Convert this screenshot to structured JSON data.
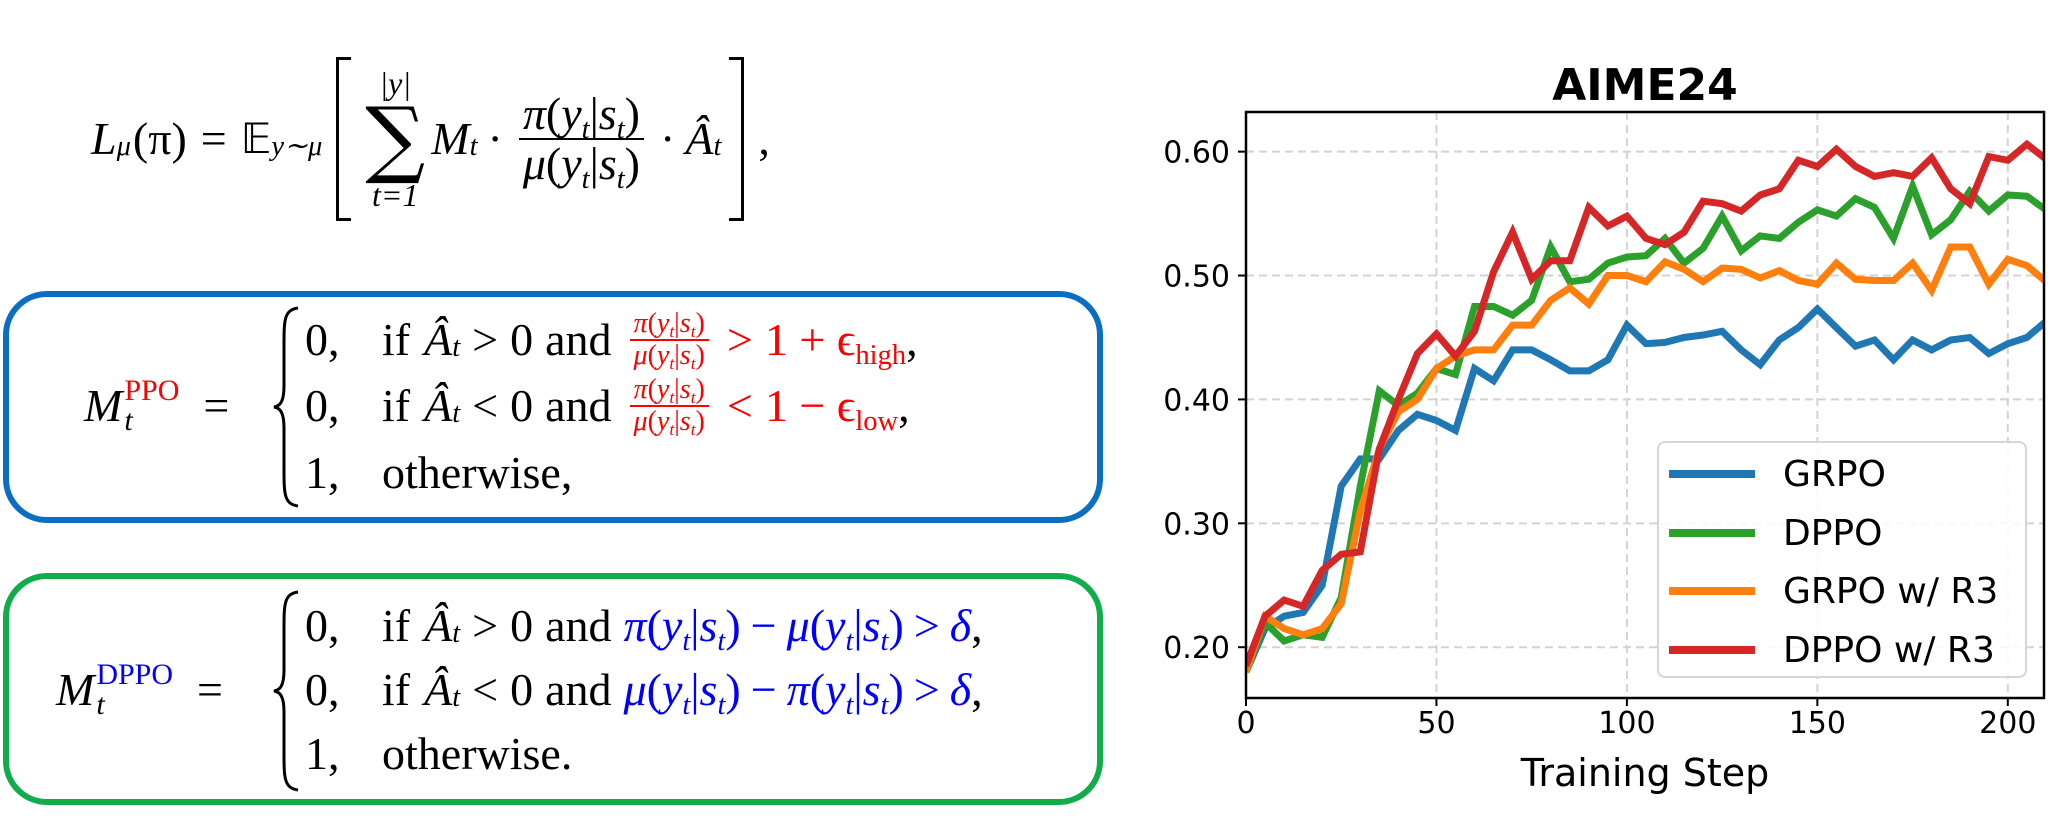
{
  "loss": {
    "L": "L",
    "mu": "μ",
    "arg": "(π)",
    "eq": "=",
    "E": "𝔼",
    "E_sub": "y∼μ",
    "sum": "∑",
    "upper": "|y|",
    "lower": "t=1",
    "M": "M",
    "t": "t",
    "dot": "·",
    "A": "Â",
    "comma": ","
  },
  "cond": {
    "pi": "π",
    "mu": "μ",
    "y": "y",
    "s": "s",
    "t": "t",
    "open": "(",
    "bar": "|",
    "close": ")",
    "minus": "−"
  },
  "ppo": {
    "lhs": "M",
    "lhs_sub": "t",
    "lhs_sup": "PPO",
    "eq": "=",
    "rows": [
      {
        "val": "0,",
        "if": "if",
        "A": "Â",
        "t": "t",
        "op": ">",
        "zero": "0",
        "and": "and",
        "rel": ">",
        "rhs": "1 + ϵ",
        "rhs_sub": "high",
        "end": ","
      },
      {
        "val": "0,",
        "if": "if",
        "A": "Â",
        "t": "t",
        "op": "<",
        "zero": "0",
        "and": "and",
        "rel": "<",
        "rhs": "1 − ϵ",
        "rhs_sub": "low",
        "end": ","
      },
      {
        "val": "1,",
        "text": "otherwise,"
      }
    ]
  },
  "dppo": {
    "lhs": "M",
    "lhs_sub": "t",
    "lhs_sup": "DPPO",
    "eq": "=",
    "rows": [
      {
        "val": "0,",
        "if": "if",
        "A": "Â",
        "t": "t",
        "op": ">",
        "zero": "0",
        "and": "and",
        "rel": ">",
        "delta": "δ",
        "end": ","
      },
      {
        "val": "0,",
        "if": "if",
        "A": "Â",
        "t": "t",
        "op": "<",
        "zero": "0",
        "and": "and",
        "rel": ">",
        "delta": "δ",
        "end": ","
      },
      {
        "val": "1,",
        "text": "otherwise."
      }
    ]
  },
  "colors": {
    "ppo_box": "#0a6fc2",
    "dppo_box": "#12ad4b",
    "ppo_highlight": "#ff0000",
    "dppo_highlight": "#0000ff"
  },
  "chart_data": {
    "type": "line",
    "title": "AIME24",
    "xlabel": "Training Step",
    "ylabel": "",
    "xlim": [
      0,
      209.5
    ],
    "ylim": [
      0.159,
      0.632
    ],
    "xticks": [
      0,
      50,
      100,
      150,
      200
    ],
    "xtick_labels": [
      "0",
      "50",
      "100",
      "150",
      "200"
    ],
    "yticks": [
      0.2,
      0.3,
      0.4,
      0.5,
      0.6
    ],
    "ytick_labels": [
      "0.20",
      "0.30",
      "0.40",
      "0.50",
      "0.60"
    ],
    "grid": true,
    "legend_position": "lower-right",
    "x": [
      0,
      5,
      10,
      15,
      20,
      25,
      30,
      35,
      40,
      45,
      50,
      55,
      60,
      65,
      70,
      75,
      80,
      85,
      90,
      95,
      100,
      105,
      110,
      115,
      120,
      125,
      130,
      135,
      140,
      145,
      150,
      155,
      160,
      165,
      170,
      175,
      180,
      185,
      190,
      195,
      200,
      205,
      210
    ],
    "series": [
      {
        "name": "GRPO",
        "color": "#1f77b4",
        "values": [
          0.18,
          0.215,
          0.225,
          0.228,
          0.25,
          0.33,
          0.352,
          0.352,
          0.375,
          0.388,
          0.383,
          0.375,
          0.425,
          0.415,
          0.44,
          0.44,
          0.432,
          0.423,
          0.423,
          0.432,
          0.46,
          0.445,
          0.446,
          0.45,
          0.452,
          0.455,
          0.44,
          0.428,
          0.448,
          0.458,
          0.473,
          0.458,
          0.443,
          0.448,
          0.432,
          0.448,
          0.44,
          0.448,
          0.45,
          0.437,
          0.445,
          0.45,
          0.463
        ]
      },
      {
        "name": "DPPO",
        "color": "#2ca02c",
        "values": [
          0.18,
          0.22,
          0.205,
          0.21,
          0.208,
          0.24,
          0.33,
          0.407,
          0.395,
          0.405,
          0.425,
          0.42,
          0.475,
          0.475,
          0.468,
          0.48,
          0.523,
          0.495,
          0.497,
          0.51,
          0.515,
          0.516,
          0.53,
          0.51,
          0.522,
          0.548,
          0.52,
          0.532,
          0.53,
          0.543,
          0.553,
          0.548,
          0.562,
          0.555,
          0.53,
          0.572,
          0.533,
          0.545,
          0.568,
          0.552,
          0.565,
          0.564,
          0.553
        ]
      },
      {
        "name": "GRPO w/ R3",
        "color": "#ff7f0e",
        "values": [
          0.18,
          0.225,
          0.215,
          0.21,
          0.215,
          0.235,
          0.31,
          0.36,
          0.39,
          0.4,
          0.425,
          0.435,
          0.44,
          0.44,
          0.46,
          0.46,
          0.48,
          0.49,
          0.477,
          0.5,
          0.5,
          0.495,
          0.511,
          0.505,
          0.495,
          0.506,
          0.505,
          0.498,
          0.504,
          0.496,
          0.493,
          0.51,
          0.497,
          0.496,
          0.496,
          0.51,
          0.488,
          0.523,
          0.523,
          0.493,
          0.513,
          0.508,
          0.495
        ]
      },
      {
        "name": "DPPO w/ R3",
        "color": "#d62728",
        "values": [
          0.185,
          0.225,
          0.238,
          0.233,
          0.262,
          0.275,
          0.277,
          0.36,
          0.4,
          0.437,
          0.453,
          0.435,
          0.455,
          0.503,
          0.535,
          0.497,
          0.512,
          0.512,
          0.555,
          0.54,
          0.548,
          0.53,
          0.525,
          0.535,
          0.56,
          0.558,
          0.552,
          0.565,
          0.57,
          0.593,
          0.588,
          0.602,
          0.588,
          0.58,
          0.583,
          0.58,
          0.595,
          0.57,
          0.558,
          0.596,
          0.593,
          0.606,
          0.594
        ]
      }
    ]
  }
}
